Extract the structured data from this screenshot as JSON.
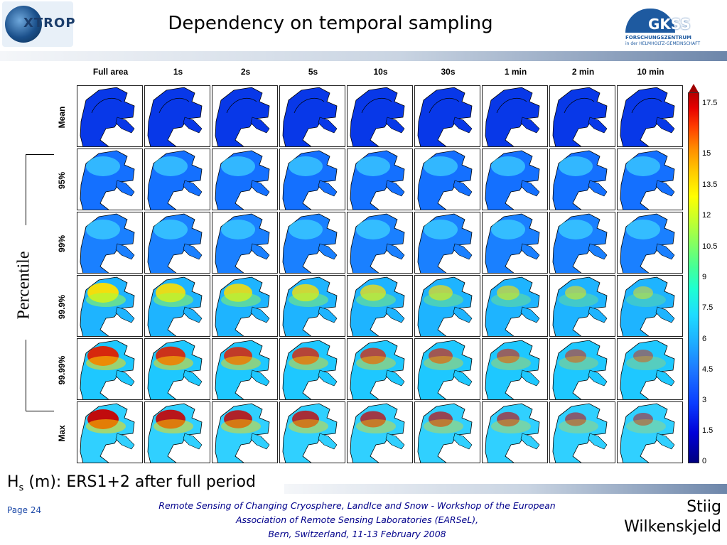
{
  "header": {
    "title": "Dependency on temporal sampling",
    "left_logo_text": "XTROP",
    "right_logo": {
      "name": "GKSS",
      "line1": "FORSCHUNGSZENTRUM",
      "line2": "in der HELMHOLTZ-GEMEINSCHAFT"
    }
  },
  "columns": [
    "Full area",
    "1s",
    "2s",
    "5s",
    "10s",
    "30s",
    "1 min",
    "2 min",
    "10 min"
  ],
  "rows": [
    "Mean",
    "95%",
    "99%",
    "99.9%",
    "99.99%",
    "Max"
  ],
  "row_group_label": "Percentile",
  "colorbar": {
    "ticks": [
      "17.5",
      "15",
      "13.5",
      "12",
      "10.5",
      "9",
      "7.5",
      "6",
      "4.5",
      "3",
      "1.5",
      "0"
    ]
  },
  "caption": {
    "main": "H",
    "sub": "s",
    "rest": " (m): ERS1+2 after full period"
  },
  "footer": {
    "page": "Page 24",
    "line1": "Remote Sensing of Changing Cryosphere, LandIce and Snow - Workshop of the European",
    "line2": "Association of Remote Sensing Laboratories (EARSeL),",
    "line3": "Bern, Switzerland, 11-13 February 2008",
    "author1": "Stiig",
    "author2": "Wilkenskjeld"
  }
}
